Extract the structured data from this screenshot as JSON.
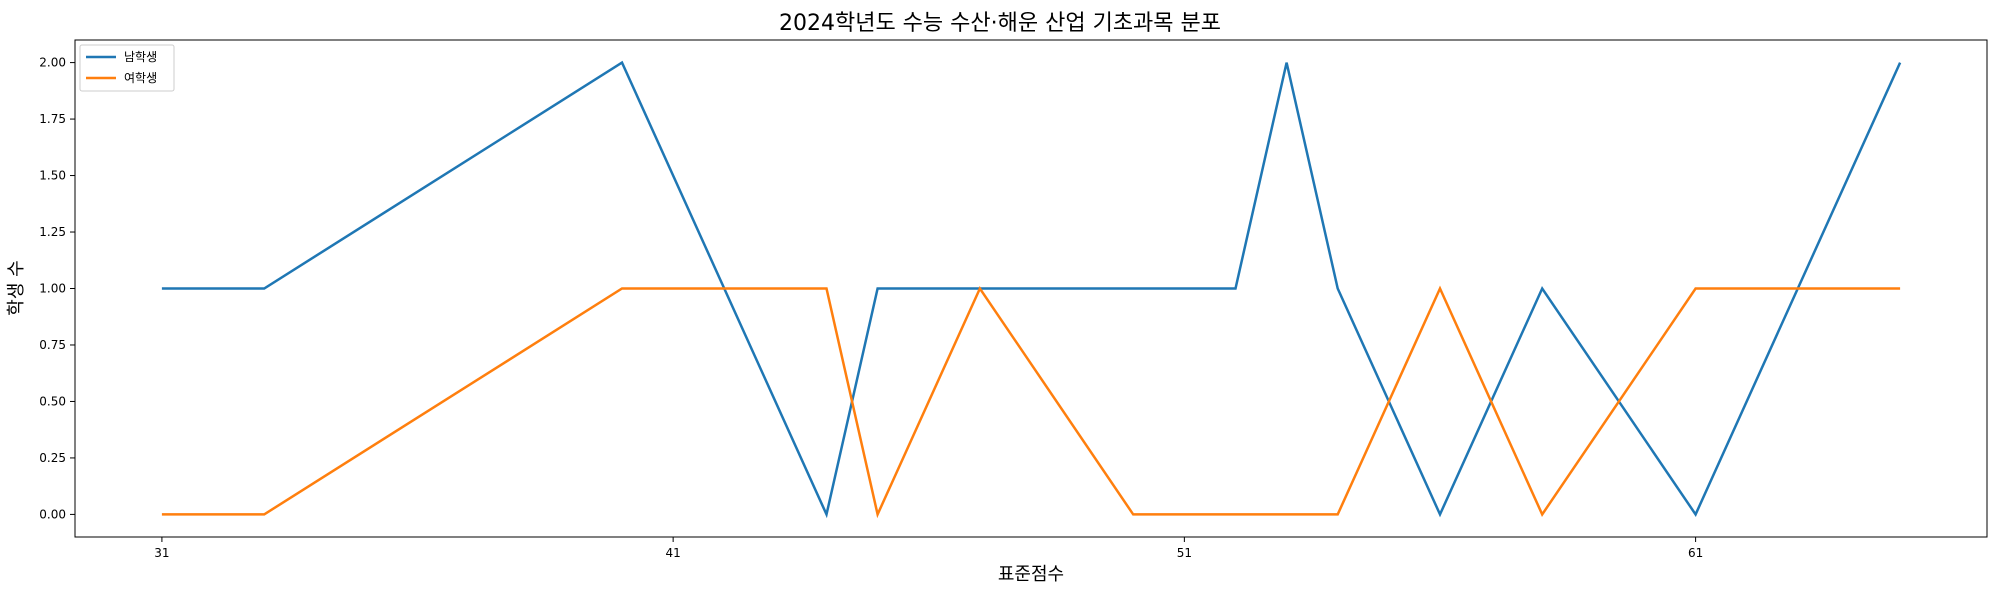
{
  "chart_data": {
    "type": "line",
    "title": "2024학년도 수능 수산·해운 산업 기초과목 분포",
    "xlabel": "표준점수",
    "ylabel": "학생 수",
    "x": [
      31,
      33,
      40,
      44,
      45,
      47,
      50,
      52,
      53,
      54,
      56,
      58,
      61,
      63,
      65
    ],
    "series": [
      {
        "name": "남학생",
        "color": "#1f77b4",
        "values": [
          1,
          1,
          2,
          0,
          1,
          1,
          1,
          1,
          2,
          1,
          0,
          1,
          0,
          1,
          2
        ]
      },
      {
        "name": "여학생",
        "color": "#ff7f0e",
        "values": [
          0,
          0,
          1,
          1,
          0,
          1,
          0,
          0,
          0,
          0,
          1,
          0,
          1,
          1,
          1
        ]
      }
    ],
    "xticks": [
      "31",
      "41",
      "51",
      "61"
    ],
    "yticks": [
      "0.00",
      "0.25",
      "0.50",
      "0.75",
      "1.00",
      "1.25",
      "1.50",
      "1.75",
      "2.00"
    ],
    "xlim": [
      29.3,
      66.7
    ],
    "ylim": [
      -0.1,
      2.1
    ],
    "legend_position": "top-left",
    "grid": false
  }
}
